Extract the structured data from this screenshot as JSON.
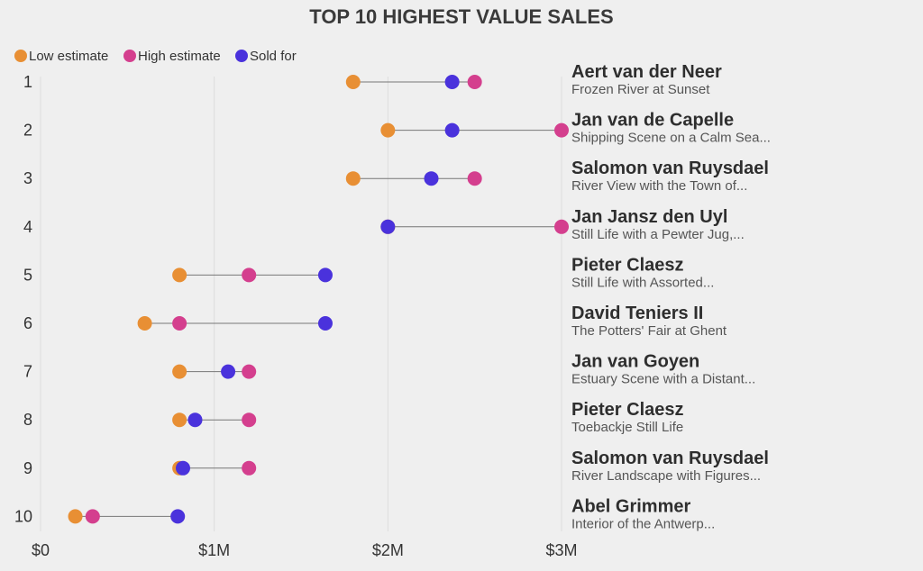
{
  "chart_data": {
    "type": "dot-range",
    "title": "TOP 10 HIGHEST VALUE SALES",
    "legend": [
      {
        "key": "low",
        "label": "Low estimate",
        "color": "#e88f34"
      },
      {
        "key": "high",
        "label": "High estimate",
        "color": "#d43f8e"
      },
      {
        "key": "sold",
        "label": "Sold for",
        "color": "#4a32dc"
      }
    ],
    "xlim": [
      0,
      3000000
    ],
    "x_ticks": [
      {
        "value": 0,
        "label": "$0"
      },
      {
        "value": 1000000,
        "label": "$1M"
      },
      {
        "value": 2000000,
        "label": "$2M"
      },
      {
        "value": 3000000,
        "label": "$3M"
      }
    ],
    "connector_color": "#777777",
    "grid_color": "#dcdcdc",
    "rows": [
      {
        "rank": "1",
        "artist": "Aert van der Neer",
        "work": "Frozen River at Sunset",
        "low": 1800000,
        "high": 2500000,
        "sold": 2370000
      },
      {
        "rank": "2",
        "artist": "Jan van de Capelle",
        "work": "Shipping Scene on a Calm Sea...",
        "low": 2000000,
        "high": 3000000,
        "sold": 2370000
      },
      {
        "rank": "3",
        "artist": "Salomon van Ruysdael",
        "work": "River View with the Town of...",
        "low": 1800000,
        "high": 2500000,
        "sold": 2250000
      },
      {
        "rank": "4",
        "artist": "Jan Jansz den Uyl",
        "work": "Still Life with a Pewter Jug,...",
        "low": 2000000,
        "high": 3000000,
        "sold": 2000000
      },
      {
        "rank": "5",
        "artist": "Pieter Claesz",
        "work": "Still Life with Assorted...",
        "low": 800000,
        "high": 1200000,
        "sold": 1640000
      },
      {
        "rank": "6",
        "artist": "David Teniers II",
        "work": "The Potters' Fair at Ghent",
        "low": 600000,
        "high": 800000,
        "sold": 1640000
      },
      {
        "rank": "7",
        "artist": "Jan van Goyen",
        "work": "Estuary Scene with a Distant...",
        "low": 800000,
        "high": 1200000,
        "sold": 1080000
      },
      {
        "rank": "8",
        "artist": "Pieter Claesz",
        "work": "Toebackje Still Life",
        "low": 800000,
        "high": 1200000,
        "sold": 890000
      },
      {
        "rank": "9",
        "artist": "Salomon van Ruysdael",
        "work": "River Landscape with Figures...",
        "low": 800000,
        "high": 1200000,
        "sold": 820000
      },
      {
        "rank": "10",
        "artist": "Abel Grimmer",
        "work": "Interior of the Antwerp...",
        "low": 200000,
        "high": 300000,
        "sold": 790000
      }
    ]
  }
}
